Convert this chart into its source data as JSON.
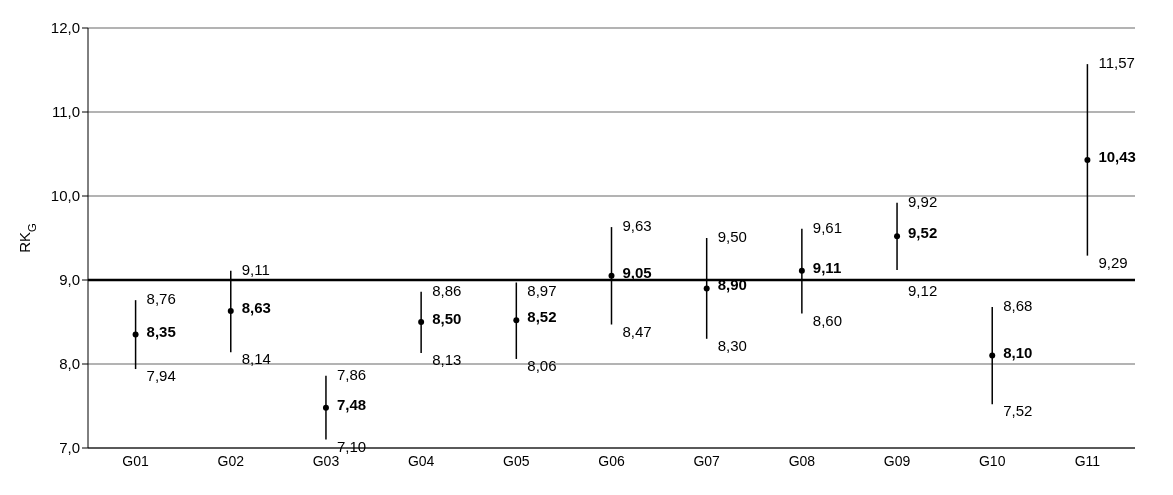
{
  "chart_data": {
    "type": "scatter",
    "ylabel": "RK$_{G}$",
    "categories": [
      "G01",
      "G02",
      "G03",
      "G04",
      "G05",
      "G06",
      "G07",
      "G08",
      "G09",
      "G10",
      "G11"
    ],
    "values": [
      8.35,
      8.63,
      7.48,
      8.5,
      8.52,
      9.05,
      8.9,
      9.11,
      9.52,
      8.1,
      10.43
    ],
    "value_labels": [
      "8,35",
      "8,63",
      "7,48",
      "8,50",
      "8,52",
      "9,05",
      "8,90",
      "9,11",
      "9,52",
      "8,10",
      "10,43"
    ],
    "errors": [
      [
        7.94,
        8.76
      ],
      [
        8.14,
        9.11
      ],
      [
        7.1,
        7.86
      ],
      [
        8.13,
        8.86
      ],
      [
        8.06,
        8.97
      ],
      [
        8.47,
        9.63
      ],
      [
        8.3,
        9.5
      ],
      [
        8.6,
        9.61
      ],
      [
        9.12,
        9.92
      ],
      [
        7.52,
        8.68
      ],
      [
        9.29,
        11.57
      ]
    ],
    "color": "#000000",
    "marker": "circle",
    "ylim": [
      7,
      12
    ],
    "yticks": [
      {
        "value": 7,
        "label": "7,0"
      },
      {
        "value": 8,
        "label": "8,0"
      },
      {
        "value": 9,
        "label": "9,0"
      },
      {
        "value": 10,
        "label": "10,0"
      },
      {
        "value": 11,
        "label": "11,0"
      },
      {
        "value": 12,
        "label": "12,0"
      }
    ],
    "grid": "y",
    "ref_lines": [
      {
        "axis": "y",
        "value": 9,
        "color": "#000000"
      }
    ],
    "annotations": [
      {
        "text": "8,76",
        "x": "G01",
        "y": 8.76
      },
      {
        "text": "7,94",
        "x": "G01",
        "y": 7.94
      },
      {
        "text": "9,11",
        "x": "G02",
        "y": 9.11
      },
      {
        "text": "8,14",
        "x": "G02",
        "y": 8.14
      },
      {
        "text": "7,86",
        "x": "G03",
        "y": 7.86
      },
      {
        "text": "7,10",
        "x": "G03",
        "y": 7.1
      },
      {
        "text": "8,86",
        "x": "G04",
        "y": 8.86
      },
      {
        "text": "8,13",
        "x": "G04",
        "y": 8.13
      },
      {
        "text": "8,97",
        "x": "G05",
        "y": 8.97
      },
      {
        "text": "8,06",
        "x": "G05",
        "y": 8.06
      },
      {
        "text": "9,63",
        "x": "G06",
        "y": 9.63
      },
      {
        "text": "8,47",
        "x": "G06",
        "y": 8.47
      },
      {
        "text": "9,50",
        "x": "G07",
        "y": 9.5
      },
      {
        "text": "8,30",
        "x": "G07",
        "y": 8.3
      },
      {
        "text": "9,61",
        "x": "G08",
        "y": 9.61
      },
      {
        "text": "8,60",
        "x": "G08",
        "y": 8.6
      },
      {
        "text": "9,92",
        "x": "G09",
        "y": 9.92
      },
      {
        "text": "9,12",
        "x": "G09",
        "y": 9.12
      },
      {
        "text": "8,68",
        "x": "G10",
        "y": 8.68
      },
      {
        "text": "7,52",
        "x": "G10",
        "y": 7.52
      },
      {
        "text": "11,57",
        "x": "G11",
        "y": 11.57
      },
      {
        "text": "9,29",
        "x": "G11",
        "y": 9.29
      }
    ]
  }
}
